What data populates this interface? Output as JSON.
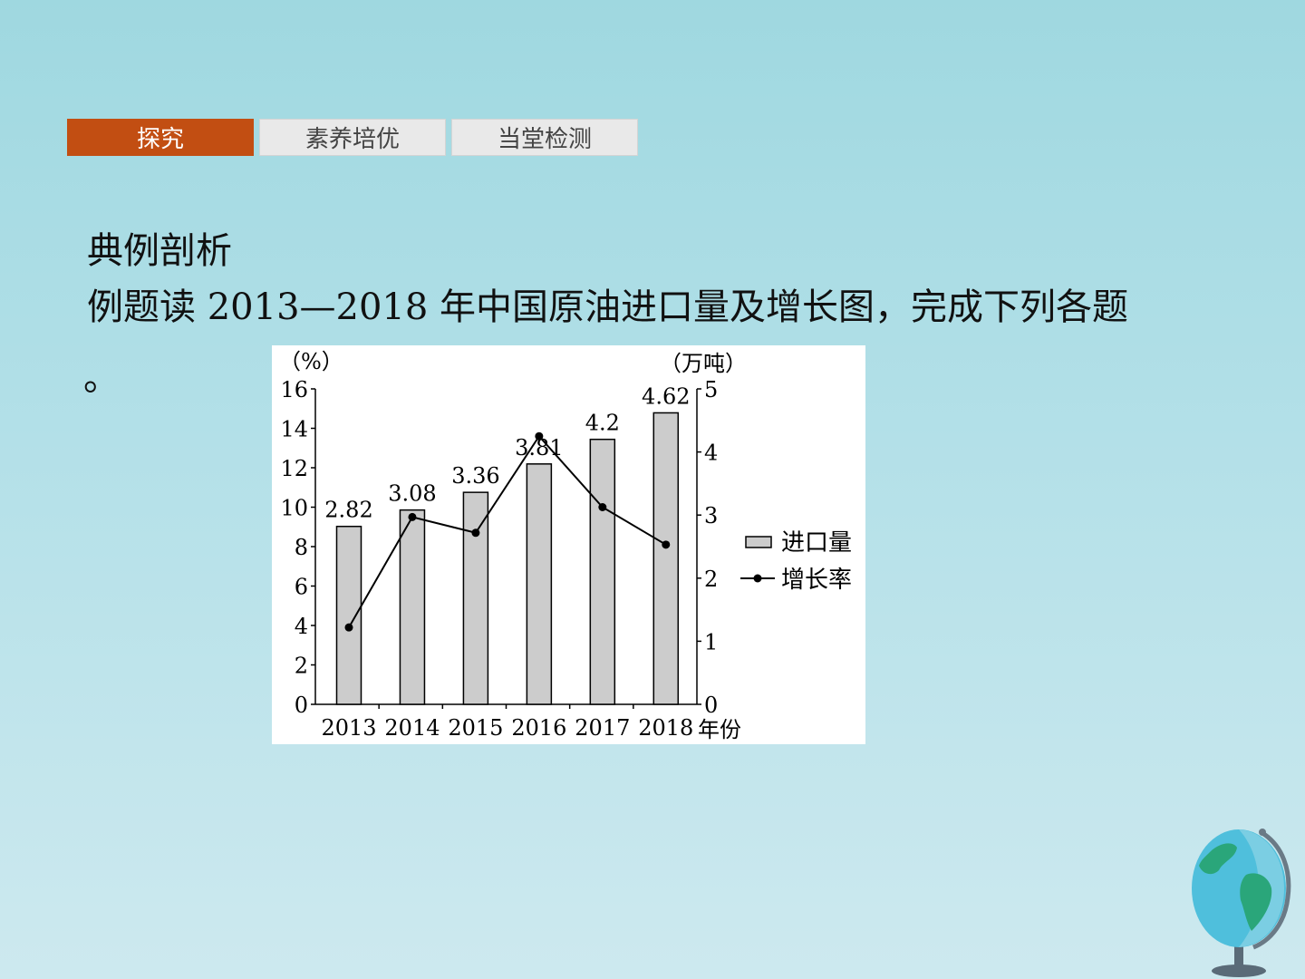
{
  "tabs": [
    {
      "label": "探究",
      "active": true
    },
    {
      "label": "素养培优",
      "active": false
    },
    {
      "label": "当堂检测",
      "active": false
    }
  ],
  "section_title": "典例剖析",
  "question": {
    "prefix": "例题读 ",
    "start_year": "2013",
    "dash": "—",
    "end_year": "2018",
    "suffix": " 年中国原油进口量及增长图，完成下列各题",
    "end": "。"
  },
  "colors": {
    "tab_active": "#c24e12",
    "tab_inactive": "#e9e9e9",
    "bar_fill": "#cccccc",
    "line": "#000000"
  },
  "decoration": {
    "icon": "globe-icon"
  },
  "chart_data": {
    "type": "bar+line",
    "categories": [
      "2013",
      "2014",
      "2015",
      "2016",
      "2017",
      "2018"
    ],
    "series": [
      {
        "name": "进口量",
        "type": "bar",
        "axis": "right",
        "values": [
          2.82,
          3.08,
          3.36,
          3.81,
          4.2,
          4.62
        ],
        "data_labels": [
          "2.82",
          "3.08",
          "3.36",
          "3.81",
          "4.2",
          "4.62"
        ]
      },
      {
        "name": "增长率",
        "type": "line",
        "axis": "left",
        "values": [
          3.9,
          9.5,
          8.7,
          13.6,
          10.0,
          8.1
        ]
      }
    ],
    "left_axis": {
      "label": "（%）",
      "ylim": [
        0,
        16
      ],
      "ticks": [
        0,
        2,
        4,
        6,
        8,
        10,
        12,
        14,
        16
      ]
    },
    "right_axis": {
      "label": "（万吨）",
      "ylim": [
        0,
        5
      ],
      "ticks": [
        0,
        1,
        2,
        3,
        4,
        5
      ]
    },
    "xlabel": "年份",
    "legend": {
      "position": "right",
      "items": [
        "进口量",
        "增长率"
      ]
    },
    "grid": false
  }
}
